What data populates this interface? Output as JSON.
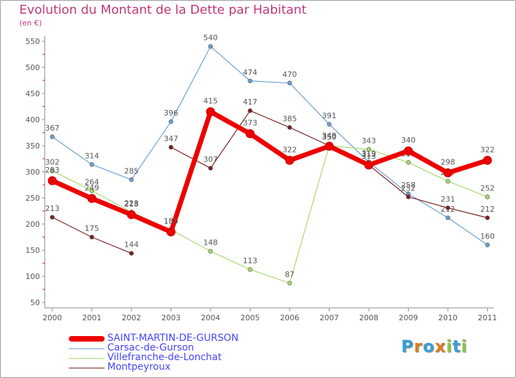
{
  "title": "Evolution du Montant de la Dette par Habitant",
  "subtitle": "(en €)",
  "logo": "Proxiti",
  "logo_letters": [
    {
      "ch": "P",
      "color": "#3aa0d8"
    },
    {
      "ch": "r",
      "color": "#e07b22"
    },
    {
      "ch": "o",
      "color": "#3aa0d8"
    },
    {
      "ch": "x",
      "color": "#e07b22"
    },
    {
      "ch": "i",
      "color": "#8cc63f"
    },
    {
      "ch": "t",
      "color": "#3aa0d8"
    },
    {
      "ch": "i",
      "color": "#8cc63f"
    }
  ],
  "chart_data": {
    "type": "line",
    "x": [
      "2000",
      "2001",
      "2002",
      "2003",
      "2004",
      "2005",
      "2006",
      "2007",
      "2008",
      "2009",
      "2010",
      "2011"
    ],
    "ylim": [
      50,
      550
    ],
    "yticks": [
      50,
      100,
      150,
      200,
      250,
      300,
      350,
      400,
      450,
      500,
      550
    ],
    "grid": false,
    "legend_position": "bottom-left",
    "series": [
      {
        "name": "SAINT-MARTIN-DE-GURSON",
        "color": "#ee0000",
        "width": 7,
        "values": [
          283,
          249,
          218,
          185,
          415,
          373,
          322,
          349,
          313,
          340,
          298,
          322
        ]
      },
      {
        "name": "Carsac-de-Gurson",
        "color": "#6c9fcf",
        "width": 1.2,
        "values": [
          367,
          314,
          285,
          396,
          540,
          474,
          470,
          391,
          319,
          258,
          212,
          160
        ]
      },
      {
        "name": "Villefranche-de-Lonchat",
        "color": "#a6d96a",
        "width": 1.2,
        "values": [
          302,
          264,
          223,
          189,
          148,
          113,
          87,
          350,
          343,
          318,
          282,
          252
        ]
      },
      {
        "name": "Montpeyroux",
        "color": "#7a1f1f",
        "width": 1.2,
        "segments": [
          [
            0,
            2
          ],
          [
            3,
            11
          ]
        ],
        "values": [
          213,
          175,
          144,
          347,
          307,
          417,
          385,
          350,
          313,
          252,
          231,
          212
        ]
      }
    ]
  }
}
